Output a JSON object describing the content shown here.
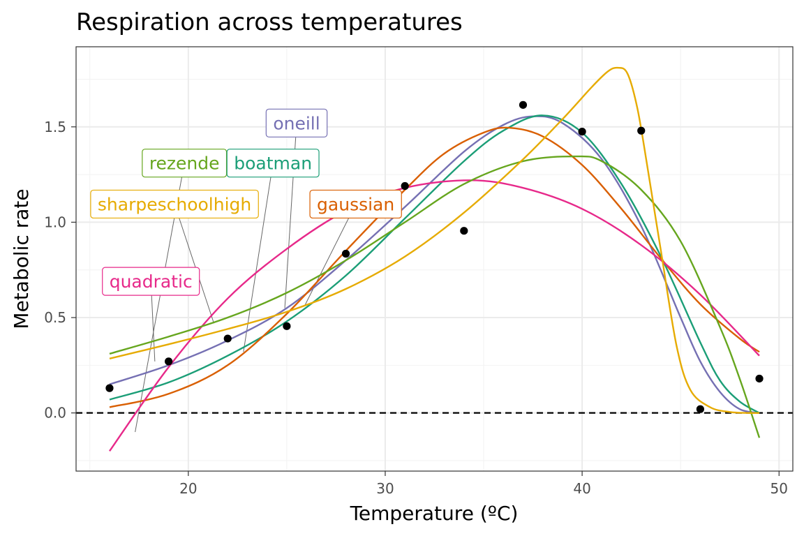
{
  "chart_data": {
    "type": "line",
    "title": "Respiration across temperatures",
    "xlabel": "Temperature (ºC)",
    "ylabel": "Metabolic rate",
    "xlim": [
      14.3,
      50.7
    ],
    "ylim": [
      -0.305,
      1.92
    ],
    "x_ticks": [
      20,
      30,
      40,
      50
    ],
    "y_ticks": [
      0.0,
      0.5,
      1.0,
      1.5
    ],
    "x_tick_labels": [
      "20",
      "30",
      "40",
      "50"
    ],
    "y_tick_labels": [
      "0.0",
      "0.5",
      "1.0",
      "1.5"
    ],
    "grid": true,
    "reference_line": {
      "y": 0,
      "style": "dashed"
    },
    "observations": {
      "x": [
        16,
        19,
        22,
        25,
        28,
        31,
        34,
        37,
        40,
        43,
        46,
        49
      ],
      "y": [
        0.13,
        0.27,
        0.39,
        0.455,
        0.835,
        1.19,
        0.955,
        1.615,
        1.475,
        1.48,
        0.02,
        0.18
      ]
    },
    "series": [
      {
        "name": "oneill",
        "color": "#7570b3",
        "x": [
          16,
          19,
          22,
          25,
          28,
          31,
          34,
          36,
          37.5,
          39,
          41,
          43,
          45,
          46,
          47,
          48,
          49
        ],
        "y": [
          0.15,
          0.25,
          0.38,
          0.55,
          0.8,
          1.08,
          1.37,
          1.51,
          1.555,
          1.52,
          1.33,
          0.98,
          0.5,
          0.27,
          0.11,
          0.02,
          0.0
        ]
      },
      {
        "name": "boatman",
        "color": "#1b9e77",
        "x": [
          16,
          19,
          22,
          25,
          28,
          31,
          34,
          36,
          38,
          40,
          42,
          44,
          46,
          47,
          48,
          49
        ],
        "y": [
          0.07,
          0.16,
          0.3,
          0.48,
          0.72,
          1.02,
          1.32,
          1.48,
          1.56,
          1.47,
          1.2,
          0.82,
          0.37,
          0.17,
          0.06,
          0.0
        ]
      },
      {
        "name": "gaussian",
        "color": "#d95f02",
        "x": [
          16,
          19,
          22,
          25,
          28,
          31,
          33,
          35,
          36.3,
          38,
          40,
          42,
          44,
          46,
          48,
          49
        ],
        "y": [
          0.03,
          0.1,
          0.25,
          0.52,
          0.85,
          1.17,
          1.36,
          1.47,
          1.495,
          1.45,
          1.3,
          1.07,
          0.81,
          0.57,
          0.39,
          0.32
        ]
      },
      {
        "name": "quadratic",
        "color": "#e7298a",
        "x": [
          16,
          19,
          22,
          25,
          28,
          31,
          34.3,
          37,
          40,
          43,
          46,
          49
        ],
        "y": [
          -0.2,
          0.24,
          0.6,
          0.86,
          1.06,
          1.18,
          1.22,
          1.18,
          1.07,
          0.88,
          0.62,
          0.3
        ]
      },
      {
        "name": "rezende",
        "color": "#66a61e",
        "x": [
          16,
          19,
          22,
          25,
          28,
          31,
          34,
          37,
          39.7,
          41,
          43,
          45,
          47,
          48,
          49
        ],
        "y": [
          0.31,
          0.4,
          0.5,
          0.63,
          0.8,
          1.0,
          1.2,
          1.32,
          1.345,
          1.32,
          1.17,
          0.9,
          0.45,
          0.18,
          -0.13
        ]
      },
      {
        "name": "sharpeschoolhigh",
        "color": "#e6ab02",
        "x": [
          16,
          19,
          22,
          25,
          28,
          31,
          34,
          37,
          39,
          40.5,
          41.3,
          41.8,
          42.3,
          42.8,
          43.3,
          44,
          44.8,
          45.5,
          46.5,
          47.5,
          48.5,
          49
        ],
        "y": [
          0.285,
          0.36,
          0.44,
          0.53,
          0.65,
          0.82,
          1.05,
          1.33,
          1.54,
          1.71,
          1.79,
          1.81,
          1.78,
          1.6,
          1.3,
          0.85,
          0.35,
          0.12,
          0.03,
          0.005,
          0.0,
          0.0
        ]
      }
    ],
    "labels": [
      {
        "text": "oneill",
        "color": "#7570b3",
        "at": [
          25.5,
          1.52
        ],
        "points_to": [
          24.9,
          0.55
        ]
      },
      {
        "text": "rezende",
        "color": "#66a61e",
        "at": [
          19.8,
          1.31
        ],
        "points_to": [
          17.3,
          -0.1
        ]
      },
      {
        "text": "boatman",
        "color": "#1b9e77",
        "at": [
          24.3,
          1.31
        ],
        "points_to": [
          22.8,
          0.32
        ]
      },
      {
        "text": "sharpeschoolhigh",
        "color": "#e6ab02",
        "at": [
          19.3,
          1.095
        ],
        "points_to": [
          21.3,
          0.47
        ]
      },
      {
        "text": "gaussian",
        "color": "#d95f02",
        "at": [
          28.5,
          1.095
        ],
        "points_to": [
          25.9,
          0.56
        ]
      },
      {
        "text": "quadratic",
        "color": "#e7298a",
        "at": [
          18.1,
          0.69
        ],
        "points_to": [
          18.3,
          0.27
        ]
      }
    ]
  }
}
